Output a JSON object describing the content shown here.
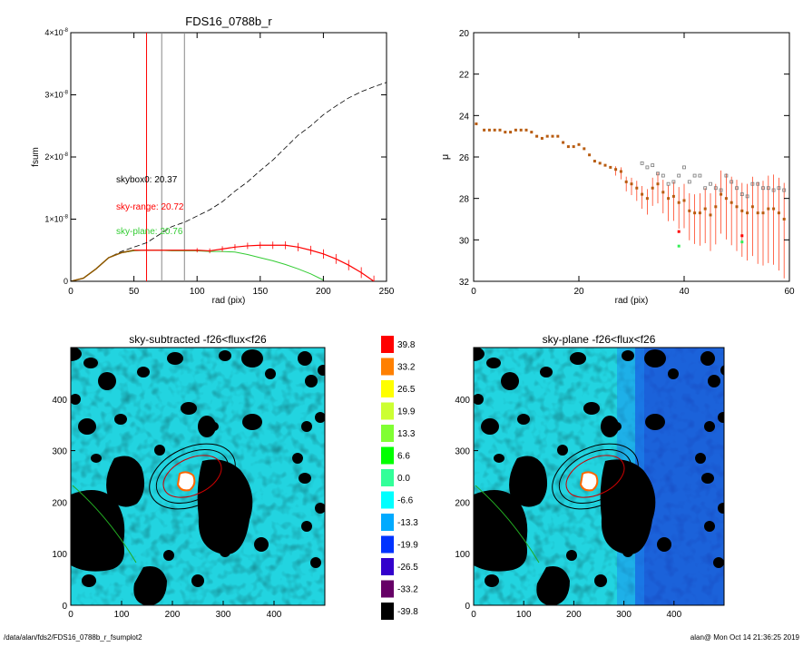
{
  "colors": {
    "axis": "#000000",
    "red": "#ff0000",
    "green": "#33cc33",
    "grey": "#888888",
    "mu_point": "#b85c10"
  },
  "plot1": {
    "title": "FDS16_0788b_r",
    "xlabel": "rad (pix)",
    "ylabel": "fsum",
    "xlim": [
      0,
      250
    ],
    "ylim": [
      0,
      4e-08
    ],
    "xticks": [
      "0",
      "50",
      "100",
      "150",
      "200",
      "250"
    ],
    "yticks": [
      {
        "mantissa": "0",
        "exp": ""
      },
      {
        "mantissa": "1×10",
        "exp": "-8"
      },
      {
        "mantissa": "2×10",
        "exp": "-8"
      },
      {
        "mantissa": "3×10",
        "exp": "-8"
      },
      {
        "mantissa": "4×10",
        "exp": "-8"
      }
    ],
    "annotations": {
      "skybox": "skybox0: 20.37",
      "skyrange": "sky-range: 20.72",
      "skyplane": "sky-plane: 20.76"
    },
    "vlines": [
      {
        "x": 60,
        "color": "#ff0000"
      },
      {
        "x": 72,
        "color": "#888888"
      },
      {
        "x": 90,
        "color": "#888888"
      }
    ]
  },
  "plot2": {
    "xlabel": "rad (pix)",
    "ylabel": "μ",
    "xlim": [
      0,
      60
    ],
    "ylim": [
      32,
      20
    ],
    "xticks": [
      "0",
      "20",
      "40",
      "60"
    ],
    "yticks": [
      "20",
      "22",
      "24",
      "26",
      "28",
      "30",
      "32"
    ]
  },
  "image1": {
    "title": "sky-subtracted -f26<flux<f26",
    "xticks": [
      "0",
      "100",
      "200",
      "300",
      "400"
    ],
    "yticks": [
      "0",
      "100",
      "200",
      "300",
      "400"
    ]
  },
  "image2": {
    "title": "sky-plane -f26<flux<f26",
    "xticks": [
      "0",
      "100",
      "200",
      "300",
      "400"
    ],
    "yticks": [
      "0",
      "100",
      "200",
      "300",
      "400"
    ]
  },
  "colorbar": {
    "levels": [
      {
        "label": "39.8",
        "color": "#ff0000"
      },
      {
        "label": "33.2",
        "color": "#ff8000"
      },
      {
        "label": "26.5",
        "color": "#ffff00"
      },
      {
        "label": "19.9",
        "color": "#ccff33"
      },
      {
        "label": "13.3",
        "color": "#80ff33"
      },
      {
        "label": "6.6",
        "color": "#00ff00"
      },
      {
        "label": "0.0",
        "color": "#33ff99"
      },
      {
        "label": "-6.6",
        "color": "#00ffff"
      },
      {
        "label": "-13.3",
        "color": "#00aaff"
      },
      {
        "label": "-19.9",
        "color": "#0033ff"
      },
      {
        "label": "-26.5",
        "color": "#3300cc"
      },
      {
        "label": "-33.2",
        "color": "#660066"
      },
      {
        "label": "-39.8",
        "color": "#000000"
      }
    ]
  },
  "footer": {
    "path": "/data/alan/fds2/FDS16_0788b_r_fsumplot2",
    "user_time": "alan@  Mon Oct 14 21:36:25 2019"
  },
  "chart_data": [
    {
      "type": "line",
      "title": "FDS16_0788b_r",
      "xlabel": "rad (pix)",
      "ylabel": "fsum",
      "xlim": [
        0,
        250
      ],
      "ylim": [
        0,
        4e-08
      ],
      "series": [
        {
          "style": "dashed-black",
          "x": [
            0,
            10,
            20,
            30,
            40,
            50,
            60,
            70,
            80,
            90,
            100,
            110,
            120,
            130,
            140,
            150,
            160,
            170,
            180,
            190,
            200,
            210,
            220,
            230,
            240,
            250
          ],
          "y": [
            0,
            5e-10,
            2e-09,
            3.8e-09,
            4.8e-09,
            5.5e-09,
            6.2e-09,
            7.5e-09,
            8.8e-09,
            9.5e-09,
            1.05e-08,
            1.15e-08,
            1.28e-08,
            1.45e-08,
            1.6e-08,
            1.78e-08,
            1.95e-08,
            2.15e-08,
            2.35e-08,
            2.5e-08,
            2.68e-08,
            2.82e-08,
            2.95e-08,
            3.05e-08,
            3.13e-08,
            3.2e-08
          ]
        },
        {
          "style": "red-errorbars",
          "x": [
            0,
            10,
            20,
            30,
            40,
            50,
            60,
            70,
            80,
            90,
            100,
            110,
            120,
            130,
            140,
            150,
            160,
            170,
            180,
            190,
            200,
            210,
            220,
            230,
            240
          ],
          "y": [
            0,
            5e-10,
            2e-09,
            3.8e-09,
            4.6e-09,
            5e-09,
            5e-09,
            5e-09,
            5e-09,
            5e-09,
            5e-09,
            4.9e-09,
            5.2e-09,
            5.5e-09,
            5.7e-09,
            5.8e-09,
            5.8e-09,
            5.8e-09,
            5.5e-09,
            5e-09,
            4.4e-09,
            3.6e-09,
            2.6e-09,
            1.4e-09,
            0.0
          ]
        },
        {
          "style": "green",
          "x": [
            0,
            10,
            20,
            30,
            40,
            50,
            60,
            70,
            80,
            90,
            100,
            110,
            120,
            130,
            140,
            150,
            160,
            170,
            180,
            190,
            200
          ],
          "y": [
            0,
            5e-10,
            2e-09,
            3.8e-09,
            4.6e-09,
            4.9e-09,
            5e-09,
            5e-09,
            4.9e-09,
            4.9e-09,
            4.9e-09,
            4.8e-09,
            4.8e-09,
            4.7e-09,
            4.3e-09,
            3.8e-09,
            3.3e-09,
            2.7e-09,
            2e-09,
            1.2e-09,
            2e-10
          ]
        }
      ]
    },
    {
      "type": "scatter",
      "xlabel": "rad (pix)",
      "ylabel": "μ",
      "xlim": [
        0,
        60
      ],
      "ylim": [
        32,
        20
      ],
      "series": [
        {
          "style": "brown-points",
          "x": [
            0.5,
            2,
            3,
            4,
            5,
            6,
            7,
            8,
            9,
            10,
            11,
            12,
            13,
            14,
            15,
            16,
            17,
            18,
            19,
            20,
            21,
            22,
            23,
            24,
            25,
            26,
            27,
            28,
            29,
            30,
            31,
            32,
            33,
            34,
            35,
            36,
            37,
            38,
            39,
            40,
            41,
            42,
            43,
            44,
            45,
            46,
            47,
            48,
            49,
            50,
            51,
            52,
            53,
            54,
            55,
            56,
            57,
            58,
            59
          ],
          "y": [
            24.4,
            24.7,
            24.7,
            24.7,
            24.7,
            24.8,
            24.8,
            24.7,
            24.7,
            24.7,
            24.8,
            25.0,
            25.1,
            25.0,
            25.0,
            25.0,
            25.3,
            25.5,
            25.5,
            25.4,
            25.6,
            25.9,
            26.2,
            26.3,
            26.4,
            26.5,
            26.6,
            26.7,
            27.2,
            27.3,
            27.5,
            27.8,
            28.0,
            27.5,
            27.3,
            27.7,
            28.0,
            27.9,
            28.2,
            28.1,
            28.6,
            28.7,
            28.7,
            28.5,
            28.8,
            28.4,
            27.8,
            28.0,
            28.2,
            28.4,
            28.6,
            28.7,
            28.4,
            28.7,
            28.7,
            28.5,
            28.5,
            28.7,
            29.0
          ]
        },
        {
          "style": "grey-squares",
          "x": [
            32,
            33,
            34,
            35,
            36,
            37,
            38,
            39,
            40,
            41,
            42,
            43,
            44,
            45,
            46,
            47,
            48,
            49,
            50,
            51,
            52,
            53,
            54,
            55,
            56,
            57,
            58,
            59
          ],
          "y": [
            26.3,
            26.5,
            26.4,
            26.8,
            26.9,
            27.3,
            27.2,
            26.9,
            26.5,
            27.2,
            26.9,
            26.9,
            27.5,
            27.3,
            27.5,
            27.6,
            26.9,
            27.2,
            27.5,
            27.8,
            27.9,
            27.3,
            27.3,
            27.5,
            27.5,
            27.6,
            27.5,
            27.6
          ]
        },
        {
          "style": "red-squares",
          "x": [
            39,
            51
          ],
          "y": [
            29.6,
            29.8
          ]
        },
        {
          "style": "green-squares",
          "x": [
            39,
            51
          ],
          "y": [
            30.3,
            30.1
          ]
        }
      ]
    }
  ]
}
